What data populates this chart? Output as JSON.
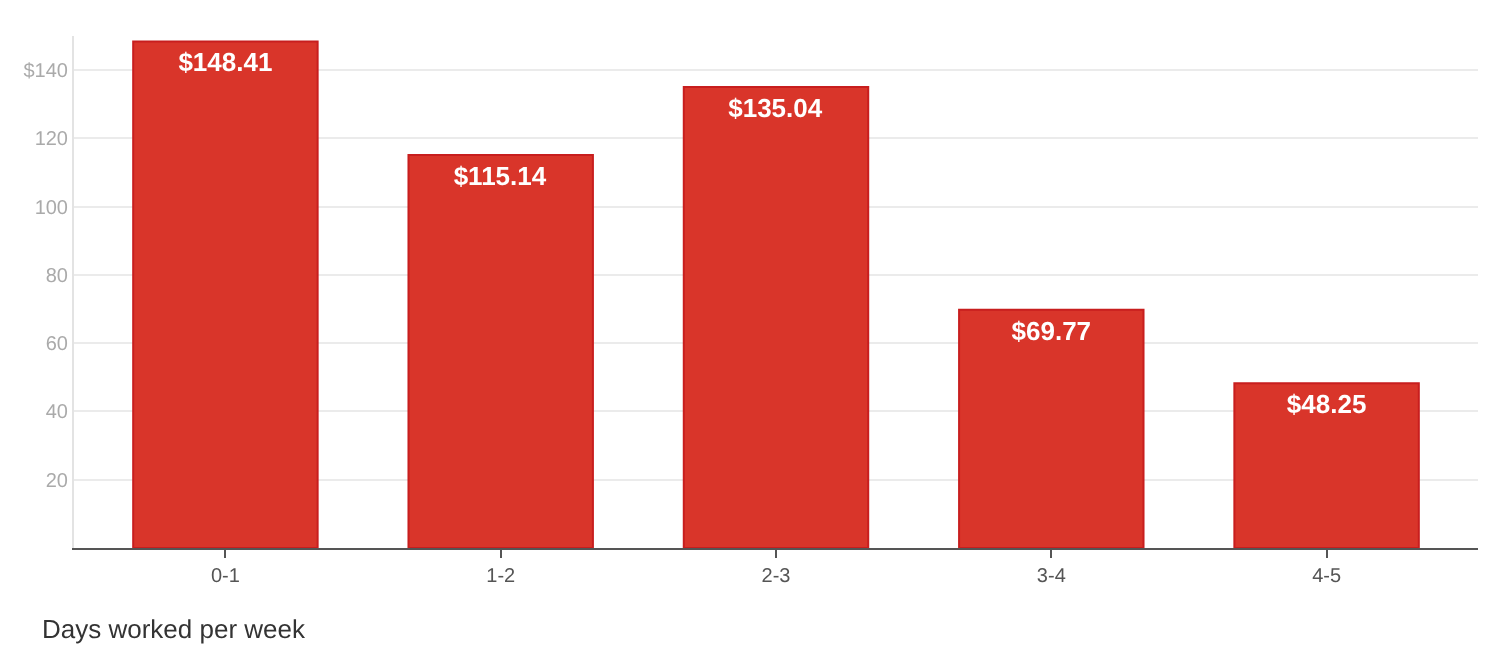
{
  "chart_data": {
    "type": "bar",
    "xlabel": "Days worked per week",
    "categories": [
      "0-1",
      "1-2",
      "2-3",
      "3-4",
      "4-5"
    ],
    "values": [
      148.41,
      115.14,
      135.04,
      69.77,
      48.25
    ],
    "value_labels": [
      "$148.41",
      "$115.14",
      "$135.04",
      "$69.77",
      "$48.25"
    ],
    "color": "#d9352a",
    "ylim": [
      0,
      150
    ],
    "yticks": [
      {
        "value": 20,
        "label": "20"
      },
      {
        "value": 40,
        "label": "40"
      },
      {
        "value": 60,
        "label": "60"
      },
      {
        "value": 80,
        "label": "80"
      },
      {
        "value": 100,
        "label": "100"
      },
      {
        "value": 120,
        "label": "120"
      },
      {
        "value": 140,
        "label": "$140"
      }
    ],
    "grid": "y"
  }
}
